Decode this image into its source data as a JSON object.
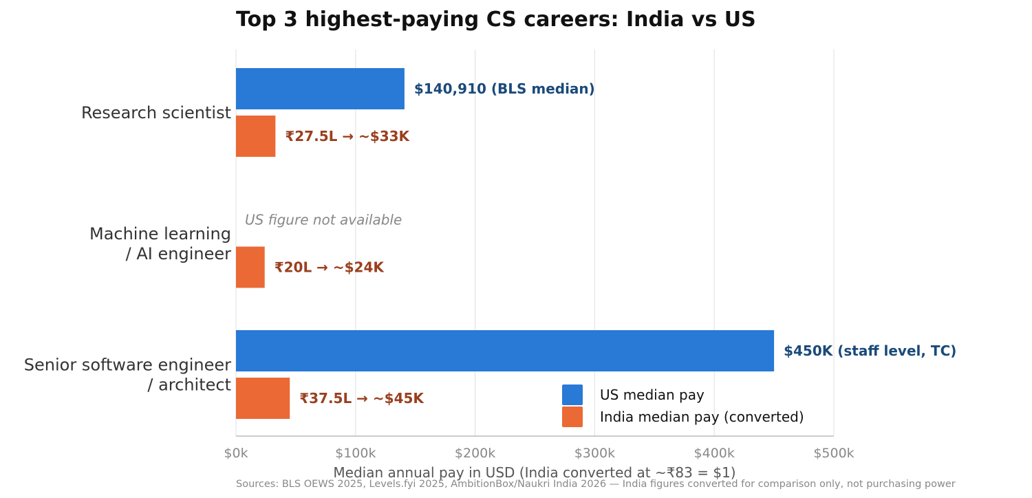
{
  "chart_data": {
    "type": "bar",
    "orientation": "horizontal",
    "title": "Top 3 highest-paying CS careers: India vs US",
    "xlabel": "Median annual pay in USD (India converted at ~₹83 = $1)",
    "xlim": [
      0,
      500000
    ],
    "x_ticks": [
      {
        "value": 0,
        "label": "$0k"
      },
      {
        "value": 100000,
        "label": "$100k"
      },
      {
        "value": 200000,
        "label": "$200k"
      },
      {
        "value": 300000,
        "label": "$300k"
      },
      {
        "value": 400000,
        "label": "$400k"
      },
      {
        "value": 500000,
        "label": "$500k"
      }
    ],
    "grid": "vertical",
    "categories": [
      {
        "lines": [
          "Research scientist"
        ]
      },
      {
        "lines": [
          "Machine learning",
          "/ AI engineer"
        ]
      },
      {
        "lines": [
          "Senior software engineer",
          "/ architect"
        ]
      }
    ],
    "series": [
      {
        "name": "US median pay",
        "color": "#2979d6",
        "values": [
          140910,
          null,
          450000
        ],
        "labels": [
          "$140,910 (BLS median)",
          null,
          "$450K (staff level, TC)"
        ]
      },
      {
        "name": "India median pay (converted)",
        "color": "#eb6935",
        "values": [
          33000,
          24000,
          45000
        ],
        "labels": [
          "₹27.5L → ~$33K",
          "₹20L → ~$24K",
          "₹37.5L → ~$45K"
        ]
      }
    ],
    "missing_note": "US figure not available",
    "legend_position": "lower-right",
    "source": "Sources: BLS OEWS 2025, Levels.fyi 2025, AmbitionBox/Naukri India 2026 — India figures converted for comparison only, not purchasing power"
  }
}
